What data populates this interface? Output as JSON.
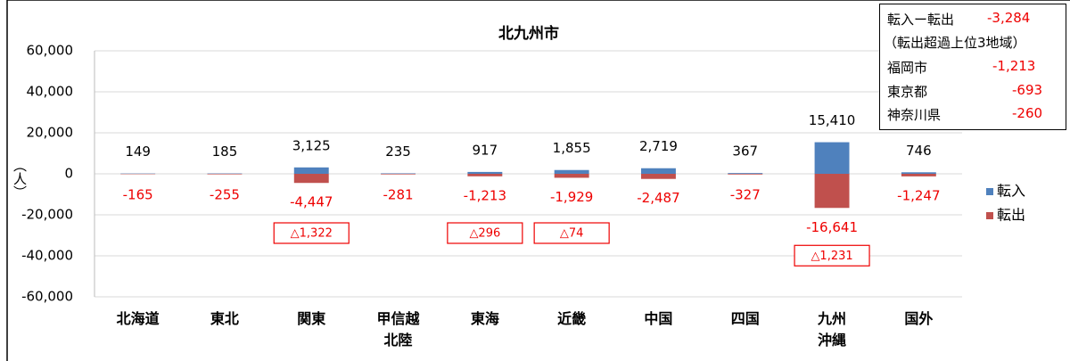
{
  "chart_data": {
    "type": "bar",
    "title": "北九州市",
    "y_label": "（人）",
    "categories": [
      "北海道",
      "東北",
      "関東",
      "甲信越\n北陸",
      "東海",
      "近畿",
      "中国",
      "四国",
      "九州\n沖縄",
      "国外"
    ],
    "series": [
      {
        "name": "転入",
        "color": "#4f81bd",
        "values": [
          149,
          185,
          3125,
          235,
          917,
          1855,
          2719,
          367,
          15410,
          746
        ],
        "value_labels": [
          "149",
          "185",
          "3,125",
          "235",
          "917",
          "1,855",
          "2,719",
          "367",
          "15,410",
          "746"
        ]
      },
      {
        "name": "転出",
        "color": "#c0504d",
        "values": [
          -165,
          -255,
          -4447,
          -281,
          -1213,
          -1929,
          -2487,
          -327,
          -16641,
          -1247
        ],
        "value_labels": [
          "-165",
          "-255",
          "-4,447",
          "-281",
          "-1,213",
          "-1,929",
          "-2,487",
          "-327",
          "-16,641",
          "-1,247"
        ]
      }
    ],
    "net_labels": [
      null,
      null,
      "△1,322",
      null,
      "△296",
      "△74",
      null,
      null,
      "△1,231",
      null
    ],
    "ylim": [
      -60000,
      60000
    ],
    "yticks": [
      {
        "value": 60000,
        "label": "60,000"
      },
      {
        "value": 40000,
        "label": "40,000"
      },
      {
        "value": 20000,
        "label": "20,000"
      },
      0,
      {
        "value": -20000,
        "label": "-20,000"
      },
      {
        "value": -40000,
        "label": "-40,000"
      },
      {
        "value": -60000,
        "label": "-60,000"
      }
    ],
    "grid": true,
    "legend": "right"
  },
  "info_box": {
    "title": "転入ー転出",
    "title_value": "-3,284",
    "subtitle": "（転出超過上位3地域）",
    "rows": [
      [
        "福岡市",
        "-1,213"
      ],
      [
        "東京都",
        "-693"
      ],
      [
        "神奈川県",
        "-260"
      ]
    ]
  }
}
